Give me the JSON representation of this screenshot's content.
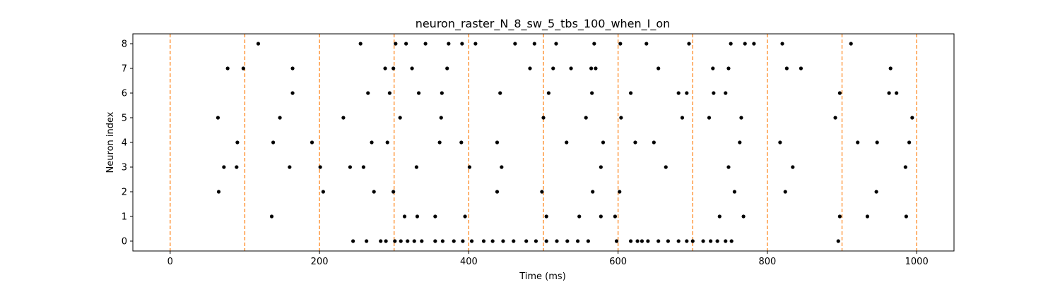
{
  "chart_data": {
    "type": "scatter",
    "title": "neuron_raster_N_8_sw_5_tbs_100_when_I_on",
    "xlabel": "Time (ms)",
    "ylabel": "Neuron index",
    "xlim": [
      -50,
      1050
    ],
    "ylim": [
      -0.4,
      8.4
    ],
    "xticks": [
      0,
      200,
      400,
      600,
      800,
      1000
    ],
    "yticks": [
      0,
      1,
      2,
      3,
      4,
      5,
      6,
      7,
      8
    ],
    "grid": false,
    "colors": {
      "spike": "#000000",
      "marker_line": "#ff7f0e",
      "axis": "#000000"
    },
    "vlines": [
      0,
      100,
      200,
      300,
      400,
      500,
      600,
      700,
      800,
      900,
      1000
    ],
    "spikes": [
      {
        "neuron": 0,
        "times": [
          245,
          263,
          282,
          289,
          301,
          309,
          318,
          327,
          337,
          355,
          365,
          380,
          392,
          404,
          420,
          432,
          446,
          460,
          477,
          490,
          504,
          518,
          532,
          546,
          560,
          598,
          617,
          626,
          632,
          640,
          654,
          667,
          681,
          692,
          700,
          714,
          724,
          733,
          744,
          752,
          895
        ]
      },
      {
        "neuron": 1,
        "times": [
          136,
          314,
          331,
          355,
          395,
          504,
          548,
          577,
          596,
          736,
          768,
          897,
          934,
          986
        ]
      },
      {
        "neuron": 2,
        "times": [
          65,
          205,
          273,
          299,
          438,
          498,
          566,
          602,
          756,
          824,
          946
        ]
      },
      {
        "neuron": 3,
        "times": [
          72,
          89,
          160,
          201,
          241,
          259,
          330,
          401,
          444,
          577,
          664,
          748,
          834,
          985
        ]
      },
      {
        "neuron": 4,
        "times": [
          90,
          138,
          190,
          270,
          291,
          361,
          390,
          438,
          531,
          580,
          623,
          648,
          763,
          817,
          921,
          947,
          990
        ]
      },
      {
        "neuron": 5,
        "times": [
          64,
          147,
          232,
          308,
          363,
          500,
          557,
          604,
          686,
          722,
          765,
          891,
          994
        ]
      },
      {
        "neuron": 6,
        "times": [
          164,
          265,
          294,
          333,
          364,
          442,
          507,
          565,
          617,
          681,
          692,
          728,
          744,
          897,
          963,
          973
        ]
      },
      {
        "neuron": 7,
        "times": [
          77,
          98,
          164,
          288,
          299,
          324,
          371,
          482,
          513,
          537,
          564,
          570,
          654,
          727,
          748,
          826,
          845,
          965
        ]
      },
      {
        "neuron": 8,
        "times": [
          118,
          255,
          302,
          316,
          342,
          373,
          391,
          409,
          462,
          488,
          517,
          568,
          603,
          638,
          695,
          751,
          770,
          782,
          820,
          912
        ]
      }
    ]
  }
}
